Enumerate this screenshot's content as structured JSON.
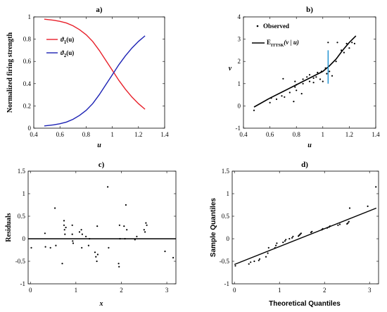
{
  "chart_data": [
    {
      "id": "a",
      "type": "line",
      "title": "a)",
      "xlabel": "u",
      "ylabel": "Normalized firing strength",
      "xlim": [
        0.4,
        1.4
      ],
      "ylim": [
        0,
        1
      ],
      "xticks": [
        0.4,
        0.6,
        0.8,
        1.0,
        1.2,
        1.4
      ],
      "xtick_labels": [
        "0.4",
        "0.6",
        "0.8",
        "1",
        "1.2",
        "1.4"
      ],
      "yticks": [
        0,
        0.2,
        0.4,
        0.6,
        0.8,
        1.0
      ],
      "ytick_labels": [
        "0",
        "0.2",
        "0.4",
        "0.6",
        "0.8",
        "1"
      ],
      "legend_position": "left",
      "series": [
        {
          "name": "ϑ1(u)",
          "legend_main": "ϑ",
          "legend_sub": "1",
          "legend_arg": "(u)",
          "color": "#e8202a",
          "x": [
            0.48,
            0.55,
            0.6,
            0.65,
            0.7,
            0.75,
            0.8,
            0.85,
            0.9,
            0.95,
            1.0,
            1.05,
            1.1,
            1.15,
            1.2,
            1.25
          ],
          "y": [
            0.98,
            0.97,
            0.96,
            0.945,
            0.92,
            0.885,
            0.84,
            0.78,
            0.7,
            0.61,
            0.52,
            0.43,
            0.35,
            0.28,
            0.22,
            0.17
          ]
        },
        {
          "name": "ϑ2(u)",
          "legend_main": "ϑ",
          "legend_sub": "2",
          "legend_arg": "(u)",
          "color": "#1c22b4",
          "x": [
            0.48,
            0.55,
            0.6,
            0.65,
            0.7,
            0.75,
            0.8,
            0.85,
            0.9,
            0.95,
            1.0,
            1.05,
            1.1,
            1.15,
            1.2,
            1.25
          ],
          "y": [
            0.02,
            0.03,
            0.04,
            0.055,
            0.08,
            0.115,
            0.16,
            0.22,
            0.3,
            0.39,
            0.48,
            0.57,
            0.65,
            0.72,
            0.78,
            0.83
          ]
        }
      ]
    },
    {
      "id": "b",
      "type": "scatter",
      "title": "b)",
      "xlabel": "u",
      "ylabel": "v",
      "xlim": [
        0.4,
        1.4
      ],
      "ylim": [
        -1,
        4
      ],
      "xticks": [
        0.4,
        0.6,
        0.8,
        1.0,
        1.2,
        1.4
      ],
      "xtick_labels": [
        "0.4",
        "0.6",
        "0.8",
        "1",
        "1.2",
        "1.4"
      ],
      "yticks": [
        -1,
        0,
        1,
        2,
        3,
        4
      ],
      "ytick_labels": [
        "-1",
        "0",
        "1",
        "2",
        "3",
        "4"
      ],
      "legend_position": "top-left",
      "legend": {
        "observed": "Observed",
        "fit_main": "E",
        "fit_sub": "ITTSK",
        "fit_arg": "(v | u)"
      },
      "observed_points": {
        "x": [
          0.48,
          0.6,
          0.61,
          0.65,
          0.69,
          0.7,
          0.71,
          0.75,
          0.78,
          0.79,
          0.79,
          0.8,
          0.8,
          0.84,
          0.85,
          0.85,
          0.88,
          0.9,
          0.9,
          0.93,
          0.93,
          0.95,
          0.96,
          0.98,
          0.99,
          1.0,
          1.02,
          1.03,
          1.04,
          1.05,
          1.07,
          1.1,
          1.11,
          1.14,
          1.16,
          1.18,
          1.2,
          1.22,
          1.24
        ],
        "y": [
          -0.2,
          0.15,
          0.35,
          0.3,
          0.45,
          1.22,
          0.4,
          0.6,
          0.2,
          0.85,
          1.1,
          0.7,
          0.95,
          0.55,
          1.0,
          1.2,
          1.3,
          1.4,
          1.1,
          1.25,
          1.05,
          1.3,
          1.5,
          1.2,
          1.55,
          1.1,
          1.7,
          1.45,
          2.85,
          1.55,
          1.35,
          2.0,
          2.85,
          2.5,
          2.4,
          2.8,
          2.6,
          2.85,
          2.8
        ]
      },
      "fit_line": {
        "color": "#000000",
        "x": [
          0.48,
          0.6,
          0.7,
          0.8,
          0.9,
          1.0,
          1.05,
          1.1,
          1.15,
          1.2,
          1.25
        ],
        "y": [
          -0.05,
          0.35,
          0.65,
          0.95,
          1.25,
          1.55,
          1.8,
          2.1,
          2.5,
          2.85,
          3.15
        ]
      },
      "highlight_segment": {
        "color": "#1a8fd0",
        "x": 1.04,
        "y_from": 1.0,
        "y_to": 2.5
      }
    },
    {
      "id": "c",
      "type": "scatter",
      "title": "c)",
      "xlabel": "x",
      "ylabel": "Residuals",
      "xlim": [
        -0.05,
        3.2
      ],
      "ylim": [
        -1,
        1.5
      ],
      "xticks": [
        0,
        1,
        2,
        3
      ],
      "xtick_labels": [
        "0",
        "1",
        "2",
        "3"
      ],
      "yticks": [
        -1,
        -0.5,
        0,
        0.5,
        1,
        1.5
      ],
      "ytick_labels": [
        "-1",
        "-0.5",
        "0",
        "0.5",
        "1",
        "1.5"
      ],
      "reference_line_y": 0,
      "points": {
        "x": [
          0.02,
          0.32,
          0.33,
          0.44,
          0.54,
          0.56,
          0.7,
          0.74,
          0.74,
          0.75,
          0.76,
          0.78,
          0.92,
          0.92,
          0.93,
          0.94,
          1.08,
          1.12,
          1.13,
          1.14,
          1.22,
          1.28,
          1.3,
          1.42,
          1.44,
          1.46,
          1.47,
          1.48,
          1.7,
          1.72,
          1.94,
          1.95,
          1.96,
          1.97,
          2.06,
          2.08,
          2.1,
          2.12,
          2.3,
          2.34,
          2.5,
          2.52,
          2.54,
          2.56,
          2.96,
          3.14
        ],
        "y": [
          -0.2,
          0.12,
          -0.18,
          -0.2,
          0.68,
          -0.15,
          -0.55,
          0.4,
          0.3,
          0.2,
          0.1,
          0.25,
          0.3,
          0.1,
          -0.05,
          -0.1,
          0.15,
          0.2,
          -0.2,
          0.1,
          0.05,
          -0.15,
          0.0,
          -0.3,
          -0.4,
          -0.5,
          0.28,
          -0.35,
          1.15,
          -0.2,
          -0.55,
          -0.62,
          0.3,
          0.0,
          0.28,
          0.0,
          0.75,
          0.2,
          -0.02,
          0.05,
          0.2,
          0.15,
          0.35,
          0.3,
          -0.28,
          -0.42
        ]
      }
    },
    {
      "id": "d",
      "type": "scatter",
      "title": "d)",
      "xlabel": "Theoretical Quantiles",
      "ylabel": "Sample Quantiles",
      "xlim": [
        -0.05,
        3.2
      ],
      "ylim": [
        -1,
        1.5
      ],
      "xticks": [
        0,
        1,
        2,
        3
      ],
      "xtick_labels": [
        "0",
        "1",
        "2",
        "3"
      ],
      "yticks": [
        -1,
        -0.5,
        0,
        0.5,
        1,
        1.5
      ],
      "ytick_labels": [
        "-1",
        "-0.5",
        "0",
        "0.5",
        "1",
        "1.5"
      ],
      "fit_line": {
        "x": [
          0.0,
          3.15
        ],
        "y": [
          -0.57,
          0.68
        ]
      },
      "points": {
        "x": [
          0.02,
          0.32,
          0.36,
          0.44,
          0.54,
          0.56,
          0.7,
          0.74,
          0.76,
          0.9,
          0.92,
          0.94,
          1.08,
          1.12,
          1.14,
          1.22,
          1.28,
          1.3,
          1.42,
          1.44,
          1.46,
          1.48,
          1.7,
          1.72,
          1.94,
          1.96,
          2.06,
          2.1,
          2.12,
          2.3,
          2.34,
          2.5,
          2.52,
          2.54,
          2.56,
          2.96,
          3.14
        ],
        "y": [
          -0.6,
          -0.56,
          -0.52,
          -0.5,
          -0.48,
          -0.45,
          -0.4,
          -0.32,
          -0.2,
          -0.2,
          -0.15,
          -0.1,
          -0.08,
          -0.05,
          -0.02,
          0.0,
          0.02,
          0.05,
          0.06,
          0.08,
          0.1,
          0.12,
          0.14,
          0.16,
          0.2,
          0.22,
          0.24,
          0.26,
          0.28,
          0.3,
          0.32,
          0.33,
          0.35,
          0.38,
          0.68,
          0.72,
          1.15
        ]
      }
    }
  ]
}
